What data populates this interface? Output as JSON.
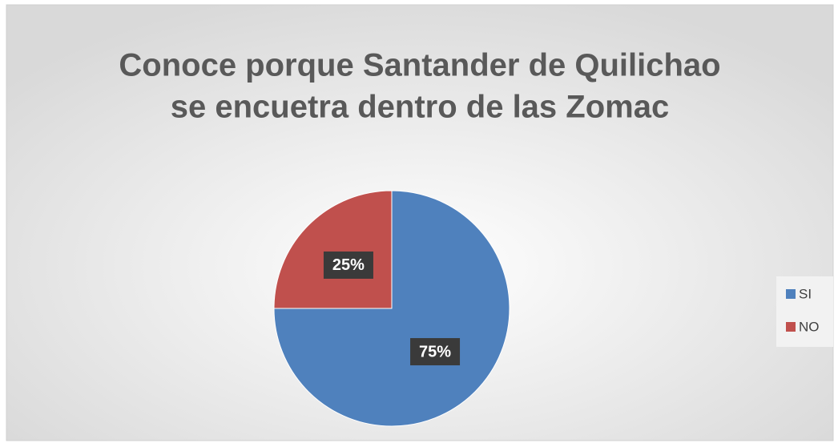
{
  "chart_data": {
    "type": "pie",
    "title": [
      "Conoce porque Santander de Quilichao",
      "se encuetra dentro de las Zomac"
    ],
    "categories": [
      "SI",
      "NO"
    ],
    "values": [
      75,
      25
    ],
    "value_labels": [
      "75%",
      "25%"
    ],
    "colors": [
      "#4f81bd",
      "#c0504d"
    ],
    "legend": "right"
  }
}
